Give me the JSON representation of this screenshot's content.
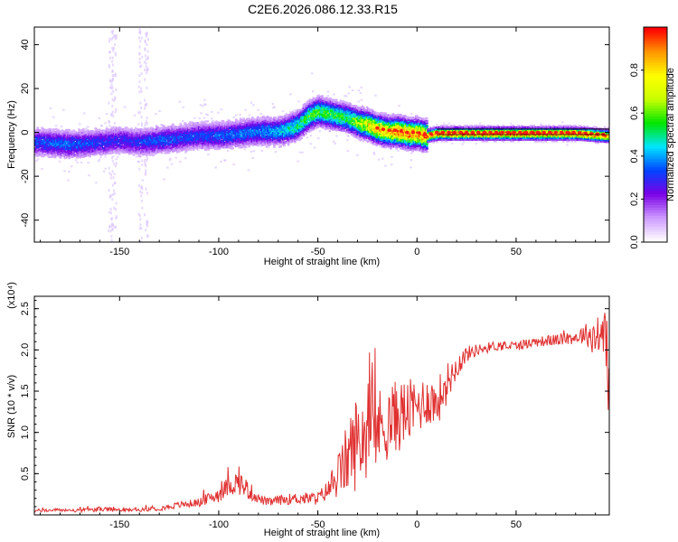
{
  "chart_data": [
    {
      "type": "heatmap",
      "title": "C2E6.2026.086.12.33.R15",
      "xlabel": "Height of straight line (km)",
      "ylabel": "Frequency (Hz)",
      "xlim": [
        -193,
        97
      ],
      "ylim": [
        -50,
        48
      ],
      "x_ticks": [
        -150,
        -100,
        -50,
        0,
        50
      ],
      "x_tick_labels": [
        "-150",
        "-100",
        "-50",
        "0",
        "50"
      ],
      "y_ticks": [
        40,
        20,
        0,
        -20,
        -40
      ],
      "y_tick_labels": [
        "40",
        "20",
        "0",
        "-20",
        "-40"
      ],
      "colorbar": {
        "label": "Normalized spectral amplitude",
        "range": [
          0,
          1
        ],
        "ticks": [
          0.0,
          0.2,
          0.4,
          0.6,
          0.8
        ],
        "tick_labels": [
          "0.0",
          "0.2",
          "0.4",
          "0.6",
          "0.8"
        ],
        "colors": [
          "#ffffff",
          "#cc99ff",
          "#7a00e6",
          "#0044ff",
          "#00e5ff",
          "#00e600",
          "#c8ff00",
          "#ffff00",
          "#ff9900",
          "#ff0000"
        ]
      },
      "ridge": {
        "x": [
          -190,
          -175,
          -160,
          -150,
          -140,
          -130,
          -120,
          -110,
          -100,
          -90,
          -80,
          -70,
          -65,
          -60,
          -55,
          -50,
          -45,
          -40,
          -35,
          -30,
          -25,
          -20,
          -15,
          -10,
          -5,
          0,
          5,
          10,
          20,
          40,
          60,
          80,
          95
        ],
        "frequency": [
          -4,
          -5,
          -4,
          -3,
          -4,
          -3,
          -2,
          -1,
          -1,
          0,
          1,
          1,
          2,
          4,
          8,
          10,
          9,
          8,
          7,
          5,
          4,
          2,
          1,
          1,
          0,
          0,
          -1,
          0,
          0,
          0,
          0,
          0,
          -1
        ],
        "amplitude": [
          0.35,
          0.38,
          0.32,
          0.3,
          0.33,
          0.36,
          0.35,
          0.34,
          0.36,
          0.38,
          0.4,
          0.45,
          0.5,
          0.55,
          0.6,
          0.62,
          0.62,
          0.6,
          0.6,
          0.7,
          0.8,
          0.9,
          0.9,
          0.95,
          0.95,
          0.95,
          0.97,
          0.98,
          1.0,
          1.0,
          1.0,
          1.0,
          0.95
        ]
      },
      "grid": false
    },
    {
      "type": "line",
      "title": "",
      "xlabel": "Height of straight line (km)",
      "ylabel": "SNR (10 * v/v)",
      "y_scale_label": "(x10⁴)",
      "xlim": [
        -193,
        97
      ],
      "ylim": [
        0,
        2.65
      ],
      "x_ticks": [
        -150,
        -100,
        -50,
        0,
        50
      ],
      "x_tick_labels": [
        "-150",
        "-100",
        "-50",
        "0",
        "50"
      ],
      "y_ticks": [
        0.5,
        1.0,
        1.5,
        2.0,
        2.5
      ],
      "y_tick_labels": [
        "0.5",
        "1.0",
        "1.5",
        "2.0",
        "2.5"
      ],
      "series": [
        {
          "color": "#e03030",
          "x": [
            -193,
            -180,
            -170,
            -160,
            -150,
            -140,
            -130,
            -120,
            -110,
            -105,
            -100,
            -95,
            -90,
            -85,
            -80,
            -75,
            -70,
            -60,
            -50,
            -45,
            -40,
            -35,
            -30,
            -25,
            -20,
            -15,
            -10,
            -5,
            0,
            5,
            10,
            15,
            20,
            25,
            30,
            40,
            50,
            60,
            70,
            80,
            85,
            90,
            95,
            97
          ],
          "values": [
            0.05,
            0.06,
            0.05,
            0.07,
            0.06,
            0.06,
            0.08,
            0.12,
            0.15,
            0.2,
            0.25,
            0.35,
            0.4,
            0.3,
            0.2,
            0.15,
            0.18,
            0.2,
            0.2,
            0.3,
            0.45,
            0.7,
            0.9,
            1.0,
            1.05,
            1.1,
            1.2,
            1.25,
            1.3,
            1.4,
            1.35,
            1.6,
            1.8,
            1.95,
            2.0,
            2.05,
            2.05,
            2.1,
            2.12,
            2.15,
            2.2,
            2.15,
            2.2,
            1.4
          ],
          "noise": [
            0.02,
            0.02,
            0.02,
            0.03,
            0.02,
            0.02,
            0.03,
            0.04,
            0.05,
            0.07,
            0.1,
            0.12,
            0.15,
            0.12,
            0.06,
            0.05,
            0.06,
            0.07,
            0.08,
            0.12,
            0.25,
            0.45,
            0.6,
            0.55,
            0.5,
            0.45,
            0.45,
            0.4,
            0.35,
            0.3,
            0.3,
            0.25,
            0.15,
            0.1,
            0.07,
            0.06,
            0.06,
            0.06,
            0.07,
            0.08,
            0.12,
            0.25,
            0.35,
            0.4
          ]
        }
      ],
      "grid": false
    }
  ]
}
